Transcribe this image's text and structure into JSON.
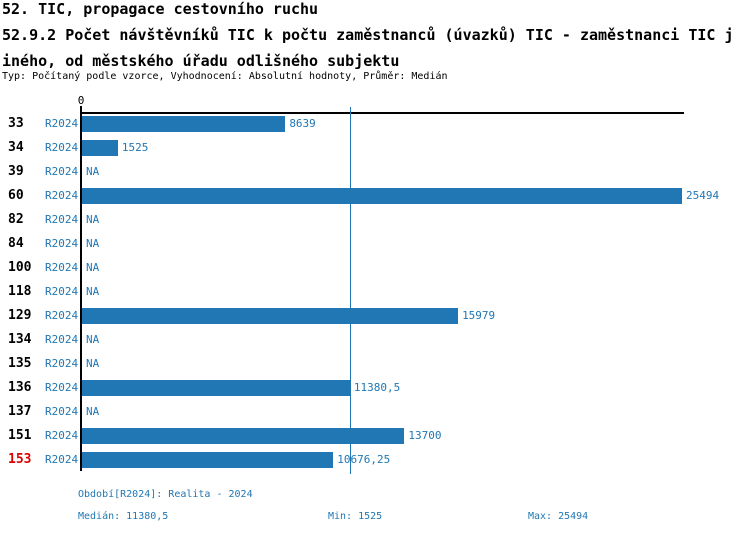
{
  "header": {
    "line1": "52. TIC, propagace cestovního ruchu",
    "line2": "52.9.2 Počet návštěvníků TIC k počtu zaměstnanců (úvazků) TIC - zaměstnanci TIC j",
    "line3": "iného, od městského úřadu odlišného subjektu",
    "meta": "Typ: Počítaný podle vzorce, Vyhodnocení: Absolutní hodnoty, Průměr: Medián"
  },
  "colors": {
    "bar_blue": "#2077b4",
    "text_blue": "#2077b4",
    "highlight_red": "#dd0000",
    "axis_black": "#000000"
  },
  "chart_data": {
    "type": "bar",
    "orientation": "horizontal",
    "title": "52.9.2 Počet návštěvníků TIC k počtu zaměstnanců (úvazků) TIC - zaměstnanci TIC jiného, od městského úřadu odlišného subjektu",
    "axis_origin_label": "0",
    "xlim": [
      0,
      25494
    ],
    "median_line_value": 11380.5,
    "grid": false,
    "rows": [
      {
        "id": "33",
        "period": "R2024",
        "value": 8639,
        "label": "8639",
        "highlight": false
      },
      {
        "id": "34",
        "period": "R2024",
        "value": 1525,
        "label": "1525",
        "highlight": false
      },
      {
        "id": "39",
        "period": "R2024",
        "value": null,
        "label": "NA",
        "highlight": false
      },
      {
        "id": "60",
        "period": "R2024",
        "value": 25494,
        "label": "25494",
        "highlight": false
      },
      {
        "id": "82",
        "period": "R2024",
        "value": null,
        "label": "NA",
        "highlight": false
      },
      {
        "id": "84",
        "period": "R2024",
        "value": null,
        "label": "NA",
        "highlight": false
      },
      {
        "id": "100",
        "period": "R2024",
        "value": null,
        "label": "NA",
        "highlight": false
      },
      {
        "id": "118",
        "period": "R2024",
        "value": null,
        "label": "NA",
        "highlight": false
      },
      {
        "id": "129",
        "period": "R2024",
        "value": 15979,
        "label": "15979",
        "highlight": false
      },
      {
        "id": "134",
        "period": "R2024",
        "value": null,
        "label": "NA",
        "highlight": false
      },
      {
        "id": "135",
        "period": "R2024",
        "value": null,
        "label": "NA",
        "highlight": false
      },
      {
        "id": "136",
        "period": "R2024",
        "value": 11380.5,
        "label": "11380,5",
        "highlight": false
      },
      {
        "id": "137",
        "period": "R2024",
        "value": null,
        "label": "NA",
        "highlight": false
      },
      {
        "id": "151",
        "period": "R2024",
        "value": 13700,
        "label": "13700",
        "highlight": false
      },
      {
        "id": "153",
        "period": "R2024",
        "value": 10676.25,
        "label": "10676,25",
        "highlight": true
      }
    ]
  },
  "footer": {
    "period_info": "Období[R2024]: Realita - 2024",
    "median": "Medián: 11380,5",
    "min": "Min: 1525",
    "max": "Max: 25494"
  }
}
